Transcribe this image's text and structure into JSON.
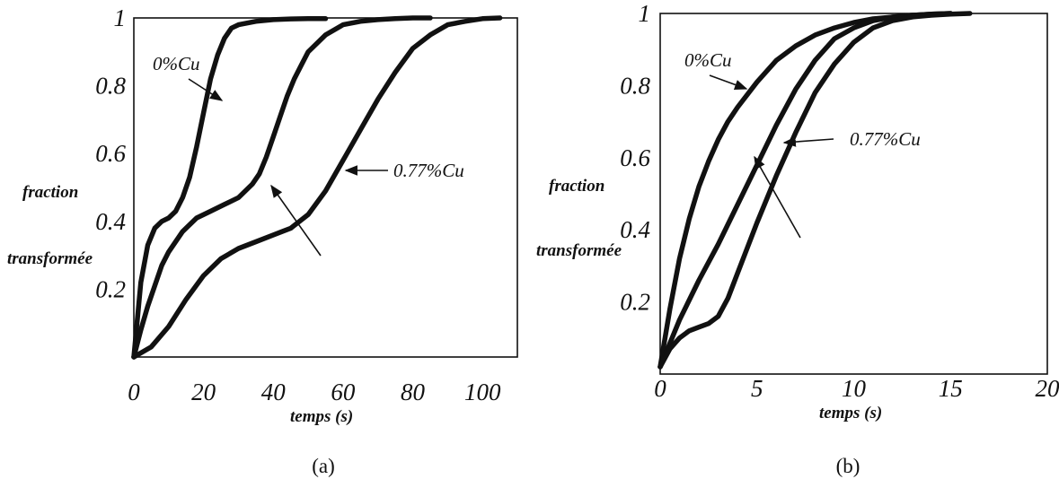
{
  "chart_data": [
    {
      "type": "line",
      "panel_label": "(a)",
      "xlabel": "temps (s)",
      "ylabel_lines": [
        "fraction",
        "transformée"
      ],
      "xlim": [
        0,
        110
      ],
      "ylim": [
        0,
        1
      ],
      "x_ticks": [
        "0",
        "20",
        "40",
        "60",
        "80",
        "100"
      ],
      "y_ticks": [
        "0.2",
        "0.4",
        "0.6",
        "0.8",
        "1"
      ],
      "series": [
        {
          "name": "0%Cu",
          "x": [
            0,
            2,
            4,
            6,
            8,
            10,
            12,
            14,
            16,
            18,
            20,
            22,
            24,
            26,
            28,
            30,
            35,
            40,
            45,
            50,
            55
          ],
          "y": [
            0,
            0.22,
            0.33,
            0.38,
            0.4,
            0.41,
            0.43,
            0.47,
            0.53,
            0.62,
            0.72,
            0.82,
            0.89,
            0.94,
            0.97,
            0.98,
            0.99,
            0.995,
            0.997,
            0.998,
            0.998
          ]
        },
        {
          "name": "",
          "x": [
            0,
            2,
            4,
            6,
            8,
            10,
            14,
            18,
            22,
            26,
            30,
            34,
            36,
            38,
            40,
            42,
            44,
            46,
            48,
            50,
            55,
            60,
            65,
            70,
            75,
            80,
            85
          ],
          "y": [
            0,
            0.08,
            0.15,
            0.21,
            0.27,
            0.31,
            0.37,
            0.41,
            0.43,
            0.45,
            0.47,
            0.51,
            0.54,
            0.59,
            0.65,
            0.71,
            0.77,
            0.82,
            0.86,
            0.9,
            0.95,
            0.98,
            0.99,
            0.995,
            0.998,
            1.0,
            1.0
          ]
        },
        {
          "name": "0.77%Cu",
          "x": [
            0,
            5,
            10,
            15,
            20,
            25,
            30,
            35,
            40,
            45,
            50,
            55,
            60,
            65,
            70,
            75,
            80,
            85,
            90,
            95,
            100,
            105
          ],
          "y": [
            0,
            0.03,
            0.09,
            0.17,
            0.24,
            0.29,
            0.32,
            0.34,
            0.36,
            0.38,
            0.42,
            0.49,
            0.58,
            0.67,
            0.76,
            0.84,
            0.91,
            0.95,
            0.98,
            0.99,
            0.998,
            1.0
          ]
        }
      ],
      "annotations": [
        "0%Cu",
        "0.77%Cu"
      ]
    },
    {
      "type": "line",
      "panel_label": "(b)",
      "xlabel": "temps (s)",
      "ylabel_lines": [
        "fraction",
        "transformée"
      ],
      "xlim": [
        0,
        20
      ],
      "ylim": [
        0,
        1
      ],
      "x_ticks": [
        "0",
        "5",
        "10",
        "15",
        "20"
      ],
      "y_ticks": [
        "0.2",
        "0.4",
        "0.6",
        "0.8",
        "1"
      ],
      "series": [
        {
          "name": "0%Cu",
          "x": [
            0,
            0.5,
            1,
            1.5,
            2,
            2.5,
            3,
            3.5,
            4,
            5,
            6,
            7,
            8,
            9,
            10,
            11,
            12,
            13,
            14,
            15
          ],
          "y": [
            0.02,
            0.18,
            0.32,
            0.43,
            0.52,
            0.59,
            0.65,
            0.7,
            0.74,
            0.81,
            0.87,
            0.91,
            0.94,
            0.96,
            0.975,
            0.985,
            0.99,
            0.995,
            0.998,
            1.0
          ]
        },
        {
          "name": "",
          "x": [
            0,
            1,
            2,
            3,
            4,
            5,
            6,
            7,
            8,
            9,
            10,
            11,
            12,
            13,
            14,
            15
          ],
          "y": [
            0.02,
            0.15,
            0.26,
            0.36,
            0.47,
            0.58,
            0.69,
            0.79,
            0.87,
            0.93,
            0.96,
            0.98,
            0.99,
            0.995,
            0.998,
            1.0
          ]
        },
        {
          "name": "0.77%Cu",
          "x": [
            0,
            0.5,
            1,
            1.5,
            2,
            2.5,
            3,
            3.5,
            4,
            4.5,
            5,
            6,
            7,
            8,
            9,
            10,
            11,
            12,
            13,
            14,
            15,
            16
          ],
          "y": [
            0.02,
            0.07,
            0.1,
            0.12,
            0.13,
            0.14,
            0.16,
            0.21,
            0.28,
            0.35,
            0.42,
            0.55,
            0.67,
            0.78,
            0.86,
            0.92,
            0.96,
            0.98,
            0.99,
            0.995,
            0.998,
            1.0
          ]
        }
      ],
      "annotations": [
        "0%Cu",
        "0.77%Cu"
      ]
    }
  ]
}
